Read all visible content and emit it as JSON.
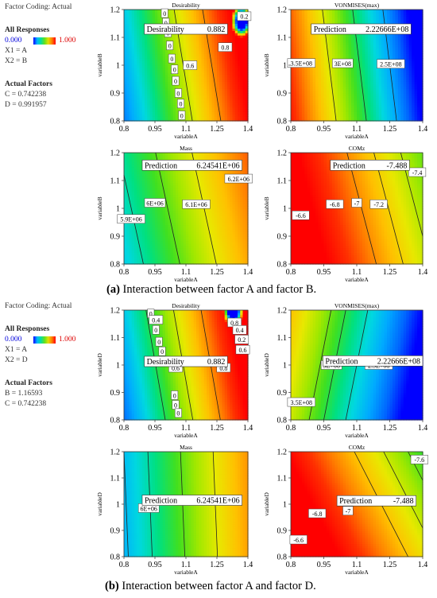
{
  "colors": {
    "low": "#0000ff",
    "high": "#ff0000",
    "scale": [
      "#0000ff",
      "#0066ff",
      "#00aaff",
      "#00d8e0",
      "#00e080",
      "#40e020",
      "#a0e800",
      "#e8e800",
      "#ffc000",
      "#ff8000",
      "#ff3000",
      "#ff0000"
    ]
  },
  "sections": [
    {
      "sidebar": {
        "coding": "Factor Coding: Actual",
        "all_responses": "All Responses",
        "range_low": "0.000",
        "range_high": "1.000",
        "x1": "X1 = A",
        "x2": "X2 = B",
        "actual_factors": "Actual Factors",
        "f1": "C = 0.742238",
        "f2": "D = 0.991957"
      },
      "caption_bold": "(a)",
      "caption_text": " Interaction between factor A and factor B."
    },
    {
      "sidebar": {
        "coding": "Factor Coding: Actual",
        "all_responses": "All Responses",
        "range_low": "0.000",
        "range_high": "1.000",
        "x1": "X1 = A",
        "x2": "X2 = D",
        "actual_factors": "Actual Factors",
        "f1": "B = 1.16593",
        "f2": "C = 0.742238"
      },
      "caption_bold": "(b)",
      "caption_text": " Interaction between factor A and factor D."
    }
  ],
  "chart_data": [
    {
      "type": "heatmap",
      "title": "Desirability",
      "xlabel": "variableA",
      "ylabel": "variableB",
      "xlim": [
        0.8,
        1.4
      ],
      "ylim": [
        0.8,
        1.2
      ],
      "x_ticks": [
        "0.8",
        "0.95",
        "1.1",
        "1.25",
        "1.4"
      ],
      "y_ticks": [
        "0.8",
        "0.9",
        "1",
        "1.1",
        "1.2"
      ],
      "field": {
        "c0": 0.12,
        "ca": 1.45,
        "cb": 0.32,
        "vmin": 0,
        "vmax": 1,
        "floor": 0.05,
        "floor_color": "#0000ff",
        "corner_value": 0.9,
        "corner_x": 1.37,
        "corner_y": 1.16
      },
      "contours": [
        {
          "label": "0",
          "value": 0.06
        },
        {
          "label": "0",
          "value": 0.12
        },
        {
          "label": "0.6",
          "value": 0.6
        },
        {
          "label": "0.8",
          "value": 0.8
        }
      ],
      "contour_labels": [
        {
          "text": "0",
          "x": 0.997,
          "y": 1.187
        },
        {
          "text": "0",
          "x": 1.003,
          "y": 1.153
        },
        {
          "text": "0",
          "x": 1.013,
          "y": 1.117
        },
        {
          "text": "0",
          "x": 1.022,
          "y": 1.071
        },
        {
          "text": "0",
          "x": 1.032,
          "y": 1.024
        },
        {
          "text": "0",
          "x": 1.045,
          "y": 0.985
        },
        {
          "text": "0",
          "x": 1.05,
          "y": 0.944
        },
        {
          "text": "0",
          "x": 1.063,
          "y": 0.9
        },
        {
          "text": "0",
          "x": 1.075,
          "y": 0.862
        },
        {
          "text": "0",
          "x": 1.08,
          "y": 0.82
        },
        {
          "text": "0.6",
          "x": 1.12,
          "y": 1.0
        },
        {
          "text": "0.8",
          "x": 1.29,
          "y": 1.065
        },
        {
          "text": "0.2",
          "x": 1.382,
          "y": 1.176
        }
      ],
      "box": {
        "label": "Desirability",
        "value": "0.882",
        "x": 1.1,
        "y": 1.13
      }
    },
    {
      "type": "heatmap",
      "title": "VONMISES(max)",
      "xlabel": "variableA",
      "ylabel": "variableB",
      "xlim": [
        0.8,
        1.4
      ],
      "ylim": [
        0.8,
        1.2
      ],
      "x_ticks": [
        "0.8",
        "0.95",
        "1.1",
        "1.25",
        "1.4"
      ],
      "y_ticks": [
        "0.8",
        "0.9",
        "1",
        "1.1",
        "1.2"
      ],
      "field": {
        "c0": 0.95,
        "ca": -1.6,
        "cb": -0.25,
        "vmin": 0,
        "vmax": 1
      },
      "contours": [
        {
          "label": "3.5E+08",
          "value": 0.62
        },
        {
          "label": "3E+08",
          "value": 0.4
        },
        {
          "label": "2.5E+08",
          "value": 0.18
        }
      ],
      "contour_labels": [
        {
          "text": "3.5E+08",
          "x": 0.848,
          "y": 1.008
        },
        {
          "text": "3E+08",
          "x": 1.036,
          "y": 1.007
        },
        {
          "text": "2.5E+08",
          "x": 1.255,
          "y": 1.005
        }
      ],
      "box": {
        "label": "Prediction",
        "value": "2.22666E+08",
        "x": 1.12,
        "y": 1.13
      }
    },
    {
      "type": "heatmap",
      "title": "Mass",
      "xlabel": "variableA",
      "ylabel": "variableB",
      "xlim": [
        0.8,
        1.4
      ],
      "ylim": [
        0.8,
        1.2
      ],
      "x_ticks": [
        "0.8",
        "0.95",
        "1.1",
        "1.25",
        "1.4"
      ],
      "y_ticks": [
        "0.8",
        "0.9",
        "1",
        "1.1",
        "1.2"
      ],
      "field": {
        "c0": 0.25,
        "ca": 0.85,
        "cb": 0.25,
        "vmin": 0,
        "vmax": 1
      },
      "contours": [
        {
          "label": "5.9E+06",
          "value": 0.2
        },
        {
          "label": "6E+06",
          "value": 0.33
        },
        {
          "label": "6.1E+06",
          "value": 0.48
        },
        {
          "label": "6.2E+06",
          "value": 0.63
        }
      ],
      "contour_labels": [
        {
          "text": "5.9E+06",
          "x": 0.835,
          "y": 0.962
        },
        {
          "text": "6E+06",
          "x": 0.95,
          "y": 1.02
        },
        {
          "text": "6.1E+06",
          "x": 1.15,
          "y": 1.015
        },
        {
          "text": "6.2E+06",
          "x": 1.355,
          "y": 1.107
        }
      ],
      "box": {
        "label": "Prediction",
        "value": "6.24541E+06",
        "x": 1.13,
        "y": 1.155
      }
    },
    {
      "type": "heatmap",
      "title": "COMz",
      "xlabel": "variableA",
      "ylabel": "variableB",
      "xlim": [
        0.8,
        1.4
      ],
      "ylim": [
        0.8,
        1.2
      ],
      "x_ticks": [
        "0.8",
        "0.95",
        "1.1",
        "1.25",
        "1.4"
      ],
      "y_ticks": [
        "0.8",
        "0.9",
        "1",
        "1.1",
        "1.2"
      ],
      "field": {
        "c0": 1.15,
        "ca": -0.9,
        "cb": -0.3,
        "vmin": 0,
        "vmax": 1
      },
      "contours": [
        {
          "label": "-6.6",
          "value": 0.8
        },
        {
          "label": "-6.8",
          "value": 0.69
        },
        {
          "label": "-7",
          "value": 0.58
        },
        {
          "label": "-7.2",
          "value": 0.47
        },
        {
          "label": "-7.4",
          "value": 0.36
        }
      ],
      "contour_labels": [
        {
          "text": "-6.6",
          "x": 0.845,
          "y": 0.975
        },
        {
          "text": "-6.8",
          "x": 1.0,
          "y": 1.015
        },
        {
          "text": "-7",
          "x": 1.1,
          "y": 1.02
        },
        {
          "text": "-7.2",
          "x": 1.2,
          "y": 1.015
        },
        {
          "text": "-7.4",
          "x": 1.375,
          "y": 1.13
        }
      ],
      "box": {
        "label": "Prediction",
        "value": "-7.488",
        "x": 1.16,
        "y": 1.155
      }
    },
    {
      "type": "heatmap",
      "title": "Desirability",
      "xlabel": "variableA",
      "ylabel": "variableD",
      "xlim": [
        0.8,
        1.4
      ],
      "ylim": [
        0.8,
        1.2
      ],
      "x_ticks": [
        "0.8",
        "0.95",
        "1.1",
        "1.25",
        "1.4"
      ],
      "y_ticks": [
        "0.8",
        "0.9",
        "1",
        "1.1",
        "1.2"
      ],
      "field": {
        "c0": 0.1,
        "ca": 1.5,
        "cb": 0.35,
        "vmin": 0,
        "vmax": 1,
        "floor": 0.05,
        "floor_color": "#0000ff",
        "corner_value": 0.75,
        "corner_x": 1.33,
        "corner_y": 1.2
      },
      "contours": [
        {
          "label": "0",
          "value": 0.06
        },
        {
          "label": "0.4",
          "value": 0.4
        },
        {
          "label": "0.6",
          "value": 0.6
        },
        {
          "label": "0.8",
          "value": 0.8
        }
      ],
      "contour_labels": [
        {
          "text": "0",
          "x": 0.93,
          "y": 1.188
        },
        {
          "text": "0.4",
          "x": 0.955,
          "y": 1.165
        },
        {
          "text": "0",
          "x": 0.955,
          "y": 1.128
        },
        {
          "text": "0",
          "x": 0.97,
          "y": 1.085
        },
        {
          "text": "0",
          "x": 0.985,
          "y": 1.05
        },
        {
          "text": "0.6",
          "x": 1.05,
          "y": 0.99
        },
        {
          "text": "0.8",
          "x": 1.282,
          "y": 0.99
        },
        {
          "text": "0",
          "x": 1.045,
          "y": 0.89
        },
        {
          "text": "0",
          "x": 1.05,
          "y": 0.855
        },
        {
          "text": "0",
          "x": 1.063,
          "y": 0.825
        },
        {
          "text": "0.8",
          "x": 1.335,
          "y": 1.155
        },
        {
          "text": "0.4",
          "x": 1.36,
          "y": 1.128
        },
        {
          "text": "0.2",
          "x": 1.37,
          "y": 1.093
        },
        {
          "text": "0.6",
          "x": 1.375,
          "y": 1.056
        }
      ],
      "box": {
        "label": "Desirability",
        "value": "0.882",
        "x": 1.1,
        "y": 1.013
      }
    },
    {
      "type": "heatmap",
      "title": "VONMISES(max)",
      "xlabel": "variableA",
      "ylabel": "variableD",
      "xlim": [
        0.8,
        1.4
      ],
      "ylim": [
        0.8,
        1.2
      ],
      "x_ticks": [
        "0.8",
        "0.95",
        "1.1",
        "1.25",
        "1.4"
      ],
      "y_ticks": [
        "0.8",
        "0.9",
        "1",
        "1.1",
        "1.2"
      ],
      "field": {
        "c0": 0.6,
        "ca": -1.2,
        "cb": 0.3,
        "vmin": 0,
        "vmax": 1
      },
      "contours": [
        {
          "label": "3.5E+08",
          "value": 0.3
        },
        {
          "label": "3E+08",
          "value": 0.5
        },
        {
          "label": "2.5E+08",
          "value": 0.42
        }
      ],
      "contour_labels": [
        {
          "text": "3.5E+08",
          "x": 0.848,
          "y": 0.865
        },
        {
          "text": "3E+08",
          "x": 0.985,
          "y": 1.0
        },
        {
          "text": "2.5E+08",
          "x": 1.2,
          "y": 1.0
        }
      ],
      "box": {
        "label": "Prediction",
        "value": "2.22666E+08",
        "x": 1.18,
        "y": 1.015
      }
    },
    {
      "type": "heatmap",
      "title": "Mass",
      "xlabel": "variableA",
      "ylabel": "variableD",
      "xlim": [
        0.8,
        1.4
      ],
      "ylim": [
        0.8,
        1.2
      ],
      "x_ticks": [
        "0.8",
        "0.95",
        "1.1",
        "1.25",
        "1.4"
      ],
      "y_ticks": [
        "0.8",
        "0.9",
        "1",
        "1.1",
        "1.2"
      ],
      "field": {
        "c0": 0.2,
        "ca": 0.95,
        "cb": 0.05,
        "vmin": 0,
        "vmax": 1
      },
      "contours": [
        {
          "label": "6E+06",
          "value": 0.33
        },
        {
          "label": "",
          "value": 0.48
        },
        {
          "label": "",
          "value": 0.63
        },
        {
          "label": "",
          "value": 0.22
        }
      ],
      "contour_labels": [
        {
          "text": "6E+06",
          "x": 0.92,
          "y": 0.985
        }
      ],
      "box": {
        "label": "Prediction",
        "value": "6.24541E+06",
        "x": 1.13,
        "y": 1.015
      }
    },
    {
      "type": "heatmap",
      "title": "COMz",
      "xlabel": "variableA",
      "ylabel": "variableD",
      "xlim": [
        0.8,
        1.4
      ],
      "ylim": [
        0.8,
        1.2
      ],
      "x_ticks": [
        "0.8",
        "0.95",
        "1.1",
        "1.25",
        "1.4"
      ],
      "y_ticks": [
        "0.8",
        "0.9",
        "1",
        "1.1",
        "1.2"
      ],
      "field": {
        "c0": 1.2,
        "ca": -0.9,
        "cb": -0.55,
        "vmin": 0,
        "vmax": 1
      },
      "contours": [
        {
          "label": "-6.6",
          "value": 0.72
        },
        {
          "label": "-6.8",
          "value": 0.6
        },
        {
          "label": "-7",
          "value": 0.5
        },
        {
          "label": "-7.6",
          "value": 0.22
        }
      ],
      "contour_labels": [
        {
          "text": "-6.6",
          "x": 0.835,
          "y": 0.865
        },
        {
          "text": "-6.8",
          "x": 0.92,
          "y": 0.965
        },
        {
          "text": "-7",
          "x": 1.06,
          "y": 0.975
        },
        {
          "text": "-7.6",
          "x": 1.385,
          "y": 1.17
        }
      ],
      "box": {
        "label": "Prediction",
        "value": "-7.488",
        "x": 1.19,
        "y": 1.013
      }
    }
  ]
}
